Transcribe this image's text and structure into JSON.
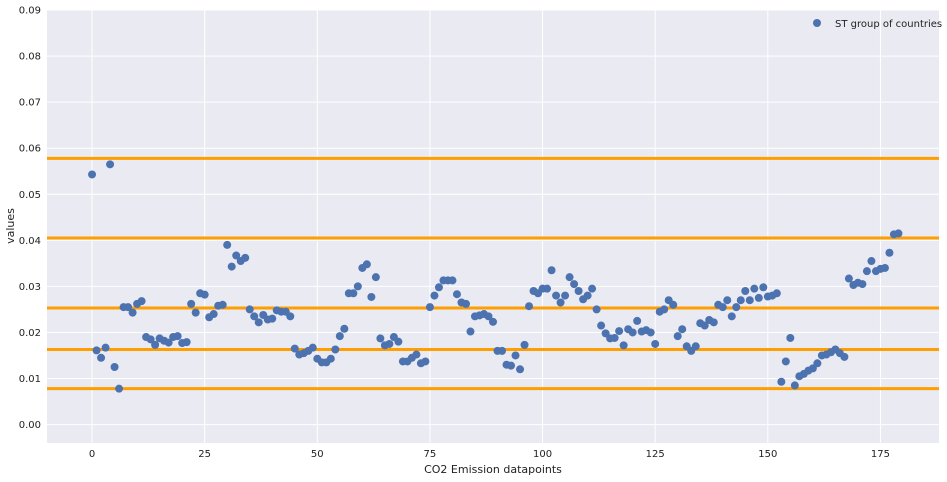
{
  "chart_data": {
    "type": "scatter",
    "xlabel": "CO2 Emission datapoints",
    "ylabel": "values",
    "xlim": [
      -10,
      188
    ],
    "ylim": [
      -0.004,
      0.09
    ],
    "xticks": [
      0,
      25,
      50,
      75,
      100,
      125,
      150,
      175
    ],
    "yticks": [
      0.0,
      0.01,
      0.02,
      0.03,
      0.04,
      0.05,
      0.06,
      0.07,
      0.08,
      0.09
    ],
    "ytick_labels": [
      "0.00",
      "0.01",
      "0.02",
      "0.03",
      "0.04",
      "0.05",
      "0.06",
      "0.07",
      "0.08",
      "0.09"
    ],
    "grid": true,
    "legend_position": "top-right",
    "background_color": "#eaeaf2",
    "series": [
      {
        "name": "ST group of countries",
        "color": "#4c72b0",
        "x": [
          0,
          1,
          2,
          3,
          4,
          5,
          6,
          7,
          8,
          9,
          10,
          11,
          12,
          13,
          14,
          15,
          16,
          17,
          18,
          19,
          20,
          21,
          22,
          23,
          24,
          25,
          26,
          27,
          28,
          29,
          30,
          31,
          32,
          33,
          34,
          35,
          36,
          37,
          38,
          39,
          40,
          41,
          42,
          43,
          44,
          45,
          46,
          47,
          48,
          49,
          50,
          51,
          52,
          53,
          54,
          55,
          56,
          57,
          58,
          59,
          60,
          61,
          62,
          63,
          64,
          65,
          66,
          67,
          68,
          69,
          70,
          71,
          72,
          73,
          74,
          75,
          76,
          77,
          78,
          79,
          80,
          81,
          82,
          83,
          84,
          85,
          86,
          87,
          88,
          89,
          90,
          91,
          92,
          93,
          94,
          95,
          96,
          97,
          98,
          99,
          100,
          101,
          102,
          103,
          104,
          105,
          106,
          107,
          108,
          109,
          110,
          111,
          112,
          113,
          114,
          115,
          116,
          117,
          118,
          119,
          120,
          121,
          122,
          123,
          124,
          125,
          126,
          127,
          128,
          129,
          130,
          131,
          132,
          133,
          134,
          135,
          136,
          137,
          138,
          139,
          140,
          141,
          142,
          143,
          144,
          145,
          146,
          147,
          148,
          149,
          150,
          151,
          152,
          153,
          154,
          155,
          156,
          157,
          158,
          159,
          160,
          161,
          162,
          163,
          164,
          165,
          166,
          167,
          168,
          169,
          170,
          171,
          172,
          173,
          174,
          175,
          176,
          177,
          178,
          179
        ],
        "y": [
          0.0543,
          0.0161,
          0.0145,
          0.0167,
          0.0565,
          0.0125,
          0.0078,
          0.0255,
          0.0255,
          0.0243,
          0.0262,
          0.0268,
          0.019,
          0.0185,
          0.0173,
          0.0187,
          0.0182,
          0.0178,
          0.019,
          0.0192,
          0.0177,
          0.0179,
          0.0262,
          0.0243,
          0.0285,
          0.0282,
          0.0233,
          0.024,
          0.0258,
          0.026,
          0.039,
          0.0343,
          0.0367,
          0.0355,
          0.0362,
          0.025,
          0.0235,
          0.0222,
          0.0238,
          0.0228,
          0.023,
          0.0248,
          0.0245,
          0.0245,
          0.0235,
          0.0165,
          0.0152,
          0.0155,
          0.016,
          0.0167,
          0.0143,
          0.0135,
          0.0135,
          0.0143,
          0.0163,
          0.0192,
          0.0208,
          0.0285,
          0.0285,
          0.03,
          0.034,
          0.0348,
          0.0277,
          0.032,
          0.0187,
          0.0172,
          0.0175,
          0.019,
          0.018,
          0.0137,
          0.0137,
          0.0145,
          0.0152,
          0.0133,
          0.0137,
          0.0255,
          0.028,
          0.0298,
          0.0313,
          0.0313,
          0.0313,
          0.0283,
          0.0265,
          0.0262,
          0.0202,
          0.0235,
          0.0237,
          0.024,
          0.0235,
          0.0223,
          0.016,
          0.016,
          0.013,
          0.0128,
          0.015,
          0.012,
          0.0173,
          0.0257,
          0.029,
          0.0285,
          0.0295,
          0.0295,
          0.0335,
          0.028,
          0.0265,
          0.028,
          0.032,
          0.0305,
          0.029,
          0.0272,
          0.028,
          0.0295,
          0.025,
          0.0215,
          0.0198,
          0.0187,
          0.0188,
          0.0203,
          0.0172,
          0.0207,
          0.02,
          0.0225,
          0.0202,
          0.0205,
          0.02,
          0.0175,
          0.0245,
          0.025,
          0.027,
          0.026,
          0.0192,
          0.0207,
          0.017,
          0.016,
          0.017,
          0.022,
          0.0215,
          0.0227,
          0.0222,
          0.026,
          0.0255,
          0.027,
          0.0235,
          0.0255,
          0.027,
          0.029,
          0.027,
          0.0295,
          0.0275,
          0.0298,
          0.0278,
          0.028,
          0.0285,
          0.0093,
          0.0137,
          0.0188,
          0.0085,
          0.0105,
          0.011,
          0.0117,
          0.0122,
          0.0133,
          0.015,
          0.0152,
          0.0157,
          0.0163,
          0.0155,
          0.0147,
          0.0317,
          0.0303,
          0.0308,
          0.0305,
          0.0333,
          0.0355,
          0.0333,
          0.0338,
          0.034,
          0.0373,
          0.0413,
          0.0415
        ]
      }
    ],
    "hlines": {
      "color": "#ff9e00",
      "values": [
        0.0578,
        0.0405,
        0.0253,
        0.0163,
        0.0078
      ]
    }
  }
}
